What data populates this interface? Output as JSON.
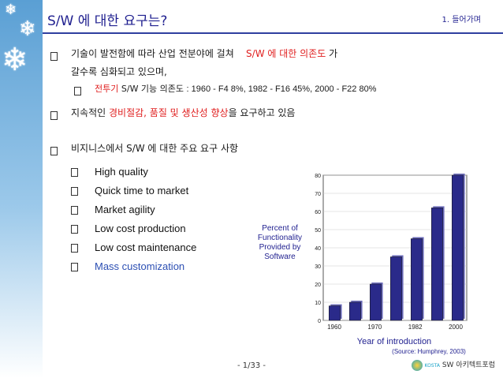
{
  "header": {
    "title": "S/W 에 대한 요구는?",
    "section": "1. 들어가며"
  },
  "bullets": {
    "b1_line1_a": "기술이 발전함에 따라 산업 전분야에 걸쳐",
    "b1_line1_b": "S/W 에 대한 의존도",
    "b1_line1_c": "가",
    "b1_line2": "갈수록 심화되고 있으며,",
    "b1_sub_a": "전투기",
    "b1_sub_b": "S/W 기능 의존도",
    "b1_sub_c": ": 1960 - F4 8%, 1982 - F16 45%, 2000 - F22 80%",
    "b2_a": "지속적인",
    "b2_b": "경비절감, 품질 및 생산성 향상",
    "b2_c": "을 요구하고 있음",
    "b3_a": "비지니스에서",
    "b3_b": "S/W 에 대한 주요 요구 사항"
  },
  "requirements": [
    "High quality",
    "Quick time to market",
    "Market agility",
    "Low cost production",
    "Low cost maintenance",
    "Mass customization"
  ],
  "colors": {
    "title": "#1f1f8f",
    "highlight": "#e02020",
    "bar": "#2a2a8a",
    "mass_customization": "#2c4fb3"
  },
  "chart_data": {
    "type": "bar",
    "ylabel": "Percent of Functionality Provided by Software",
    "xlabel": "Year of introduction",
    "source": "(Source: Humphrey, 2003)",
    "ylim": [
      0,
      80
    ],
    "yticks": [
      0,
      10,
      20,
      30,
      40,
      50,
      60,
      70,
      80
    ],
    "xticks": [
      "1960",
      "1970",
      "1982",
      "2000"
    ],
    "values": [
      8,
      10,
      20,
      35,
      45,
      62,
      80
    ]
  },
  "footer": {
    "page": "- 1/33 -",
    "logo_text": "SW 아키텍트포럼",
    "logo_small": "KOSTA"
  }
}
